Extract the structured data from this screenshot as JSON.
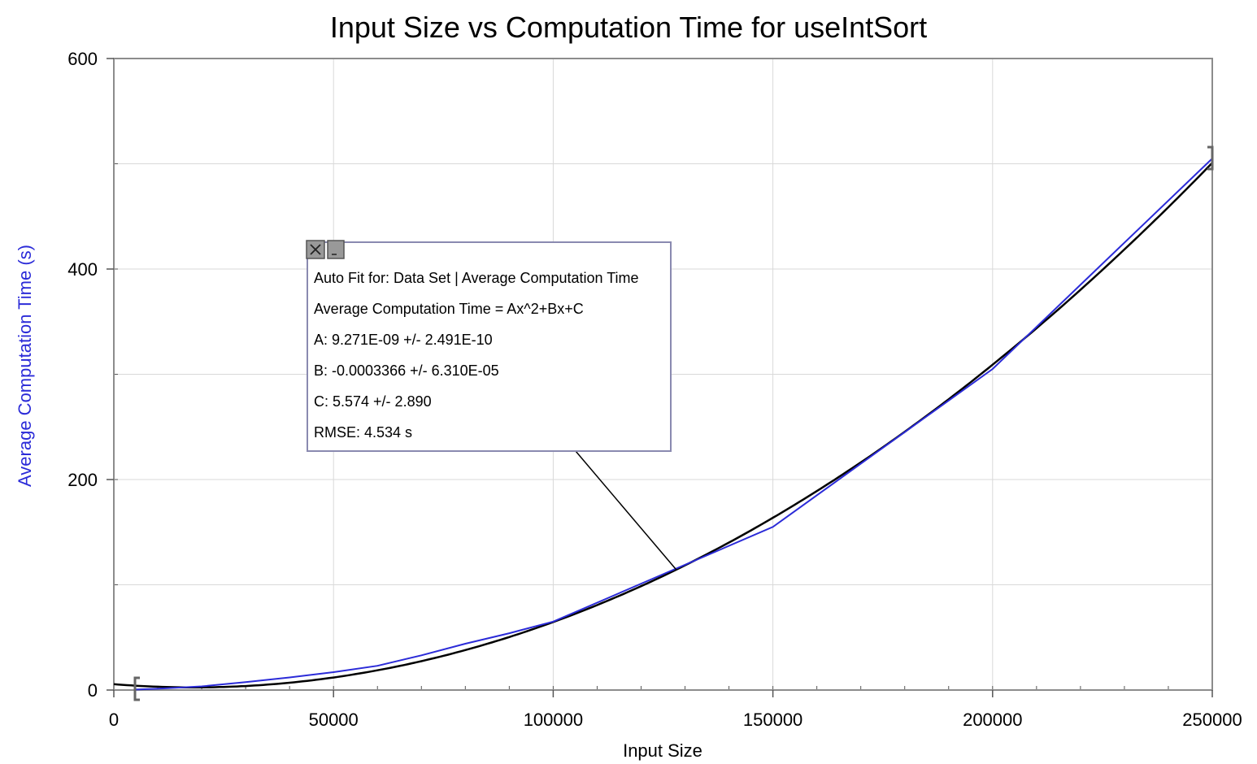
{
  "chart_data": {
    "type": "line",
    "title": "Input Size vs Computation Time for useIntSort",
    "xlabel": "Input Size",
    "ylabel": "Average Computation Time (s)",
    "xlim": [
      0,
      250000
    ],
    "ylim": [
      0,
      600
    ],
    "x_ticks": [
      0,
      50000,
      100000,
      150000,
      200000,
      250000
    ],
    "y_ticks": [
      0,
      200,
      400,
      600
    ],
    "grid": true,
    "colors": {
      "data": "#2b2bd8",
      "fit": "#000000",
      "grid": "#d9d9d9",
      "box_border": "#8a8ab0"
    },
    "series": [
      {
        "name": "Average Computation Time",
        "x": [
          5000,
          10000,
          20000,
          30000,
          40000,
          50000,
          60000,
          70000,
          80000,
          90000,
          100000,
          125000,
          150000,
          175000,
          200000,
          225000,
          250000
        ],
        "y": [
          0.5,
          1.2,
          3.5,
          7.5,
          12,
          17,
          23,
          33,
          44,
          54,
          65,
          110,
          155,
          230,
          305,
          405,
          505
        ]
      }
    ],
    "fit": {
      "model": "quadratic",
      "A": 9.271e-09,
      "B": -0.0003366,
      "C": 5.574
    },
    "annotation": {
      "lines": [
        "Auto Fit for: Data Set | Average Computation Time",
        "Average Computation Time = Ax^2+Bx+C",
        "A: 9.271E-09 +/- 2.491E-10",
        "B: -0.0003366 +/- 6.310E-05",
        "C: 5.574 +/- 2.890",
        "RMSE: 4.534 s"
      ],
      "anchor_x": 128000
    }
  }
}
